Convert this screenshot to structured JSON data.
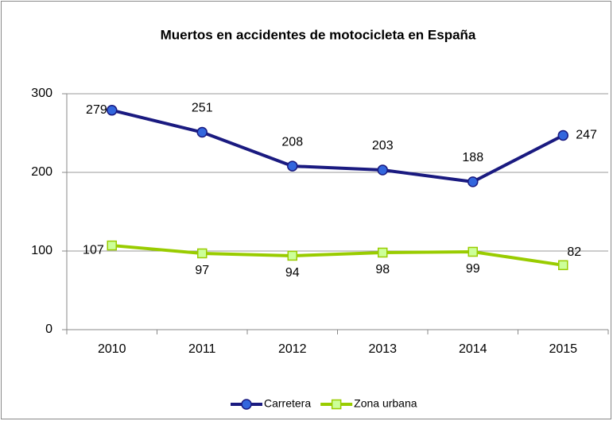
{
  "chart_data": {
    "type": "line",
    "title": "Muertos en accidentes de motocicleta en España",
    "categories": [
      "2010",
      "2011",
      "2012",
      "2013",
      "2014",
      "2015"
    ],
    "series": [
      {
        "name": "Carretera",
        "color": "#1a1a80",
        "marker_color": "#3366dd",
        "marker": "circle",
        "values": [
          279,
          251,
          208,
          203,
          188,
          247
        ]
      },
      {
        "name": "Zona urbana",
        "color": "#99cc00",
        "marker_color": "#ccff99",
        "marker": "square",
        "values": [
          107,
          97,
          94,
          98,
          99,
          82
        ]
      }
    ],
    "ylim": [
      0,
      300
    ],
    "yticks": [
      0,
      100,
      200,
      300
    ],
    "grid": true,
    "legend": "bottom"
  }
}
